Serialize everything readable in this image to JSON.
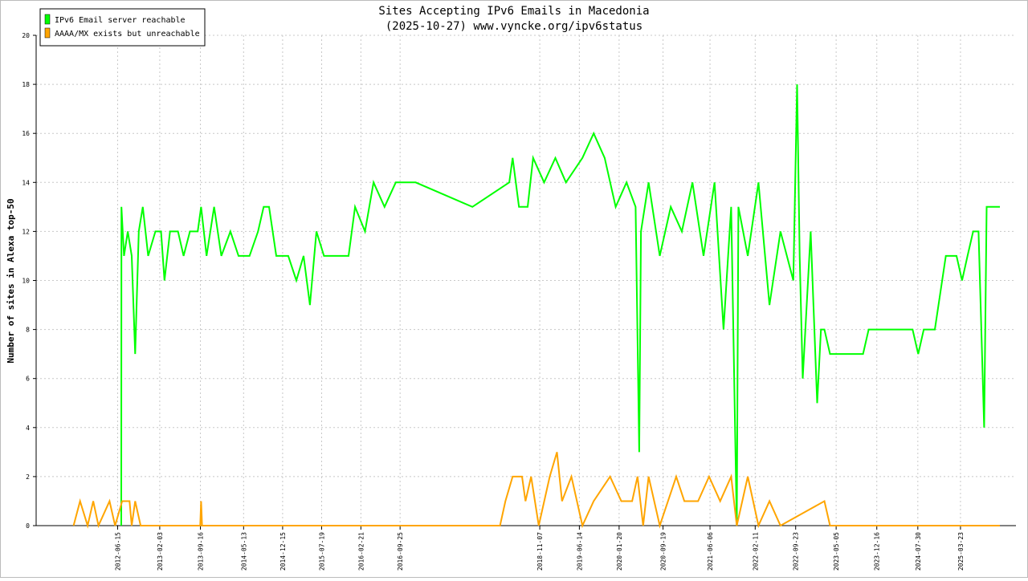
{
  "chart_data": {
    "type": "line",
    "title": "Sites Accepting IPv6 Emails in Macedonia",
    "subtitle": "(2025-10-27) www.vyncke.org/ipv6status",
    "y_label": "Number of sites in Alexa top-50",
    "xlim": [
      "2011-03-22",
      "2026-01-24"
    ],
    "xticks": [
      "2012-06-15",
      "2013-02-03",
      "2013-09-16",
      "2014-05-13",
      "2014-12-15",
      "2015-07-19",
      "2016-02-21",
      "2016-09-25",
      "2018-11-07",
      "2019-06-14",
      "2020-01-20",
      "2020-09-19",
      "2021-06-06",
      "2022-02-11",
      "2022-09-23",
      "2023-05-05",
      "2023-12-16",
      "2024-07-30",
      "2025-03-23"
    ],
    "ylim": [
      0,
      20
    ],
    "yticks": [
      0,
      2,
      4,
      6,
      8,
      10,
      12,
      14,
      16,
      18,
      20
    ],
    "grid": true,
    "legend": "top-left",
    "series": [
      {
        "name": "IPv6 Email server reachable",
        "color": "#00ff00",
        "x": [
          "2012-07-05",
          "2012-07-06",
          "2012-07-20",
          "2012-08-10",
          "2012-09-01",
          "2012-09-20",
          "2012-10-10",
          "2012-11-01",
          "2012-12-01",
          "2013-01-10",
          "2013-02-10",
          "2013-03-01",
          "2013-04-01",
          "2013-05-15",
          "2013-06-15",
          "2013-07-20",
          "2013-09-01",
          "2013-09-20",
          "2013-10-20",
          "2013-12-01",
          "2014-01-10",
          "2014-03-01",
          "2014-04-15",
          "2014-06-15",
          "2014-08-01",
          "2014-09-01",
          "2014-10-01",
          "2014-11-10",
          "2015-01-15",
          "2015-03-01",
          "2015-04-10",
          "2015-05-15",
          "2015-06-20",
          "2015-08-01",
          "2015-10-15",
          "2015-12-15",
          "2016-01-20",
          "2016-03-15",
          "2016-05-01",
          "2016-07-01",
          "2016-09-01",
          "2016-10-15",
          "2016-12-20",
          "2017-10-30",
          "2018-05-22",
          "2018-06-10",
          "2018-07-15",
          "2018-09-01",
          "2018-10-01",
          "2018-12-01",
          "2019-02-01",
          "2019-04-01",
          "2019-07-01",
          "2019-09-01",
          "2019-11-01",
          "2020-01-01",
          "2020-03-01",
          "2020-04-20",
          "2020-05-10",
          "2020-05-20",
          "2020-07-01",
          "2020-09-01",
          "2020-11-01",
          "2021-01-01",
          "2021-03-01",
          "2021-05-01",
          "2021-07-01",
          "2021-08-20",
          "2021-10-01",
          "2021-11-01",
          "2021-11-10",
          "2022-01-01",
          "2022-03-01",
          "2022-05-01",
          "2022-07-01",
          "2022-09-10",
          "2022-10-01",
          "2022-10-15",
          "2022-11-01",
          "2022-12-15",
          "2023-01-20",
          "2023-02-10",
          "2023-03-01",
          "2023-04-01",
          "2023-10-01",
          "2023-11-01",
          "2024-01-01",
          "2024-07-01",
          "2024-08-01",
          "2024-09-01",
          "2024-11-01",
          "2025-01-01",
          "2025-03-01",
          "2025-04-01",
          "2025-05-01",
          "2025-06-01",
          "2025-07-01",
          "2025-08-01",
          "2025-08-15",
          "2025-10-27"
        ],
        "values": [
          0,
          13,
          11,
          12,
          11,
          7,
          12,
          13,
          11,
          12,
          12,
          10,
          12,
          12,
          11,
          12,
          12,
          13,
          11,
          13,
          11,
          12,
          11,
          11,
          12,
          13,
          13,
          11,
          11,
          10,
          11,
          9,
          12,
          11,
          11,
          11,
          13,
          12,
          14,
          13,
          14,
          14,
          14,
          13,
          14,
          15,
          13,
          13,
          15,
          14,
          15,
          14,
          15,
          16,
          15,
          13,
          14,
          13,
          3,
          12,
          14,
          11,
          13,
          12,
          14,
          11,
          14,
          8,
          13,
          0,
          13,
          11,
          14,
          9,
          12,
          10,
          18,
          11,
          6,
          12,
          5,
          8,
          8,
          7,
          7,
          8,
          8,
          8,
          7,
          8,
          8,
          11,
          11,
          10,
          11,
          12,
          12,
          4,
          13,
          13
        ]
      },
      {
        "name": "AAAA/MX exists but unreachable",
        "color": "#ffa500",
        "x": [
          "2011-10-15",
          "2011-11-20",
          "2012-01-01",
          "2012-02-01",
          "2012-03-01",
          "2012-05-01",
          "2012-06-01",
          "2012-07-10",
          "2012-08-20",
          "2012-09-01",
          "2012-09-20",
          "2012-10-20",
          "2013-09-15",
          "2013-09-20",
          "2013-09-25",
          "2018-04-01",
          "2018-05-01",
          "2018-06-10",
          "2018-08-01",
          "2018-08-20",
          "2018-09-20",
          "2018-11-01",
          "2019-01-01",
          "2019-02-10",
          "2019-03-10",
          "2019-05-01",
          "2019-07-01",
          "2019-09-01",
          "2019-12-01",
          "2020-02-01",
          "2020-04-01",
          "2020-05-01",
          "2020-06-01",
          "2020-07-01",
          "2020-09-01",
          "2020-12-01",
          "2021-01-15",
          "2021-04-01",
          "2021-06-01",
          "2021-08-01",
          "2021-10-01",
          "2021-11-01",
          "2022-01-01",
          "2022-03-01",
          "2022-05-01",
          "2022-07-01",
          "2023-03-01",
          "2023-04-01",
          "2025-10-27"
        ],
        "values": [
          0,
          1,
          0,
          1,
          0,
          1,
          0,
          1,
          1,
          0,
          1,
          0,
          0,
          1,
          0,
          0,
          1,
          2,
          2,
          1,
          2,
          0,
          2,
          3,
          1,
          2,
          0,
          1,
          2,
          1,
          1,
          2,
          0,
          2,
          0,
          2,
          1,
          1,
          2,
          1,
          2,
          0,
          2,
          0,
          1,
          0,
          1,
          0,
          0
        ]
      }
    ]
  }
}
